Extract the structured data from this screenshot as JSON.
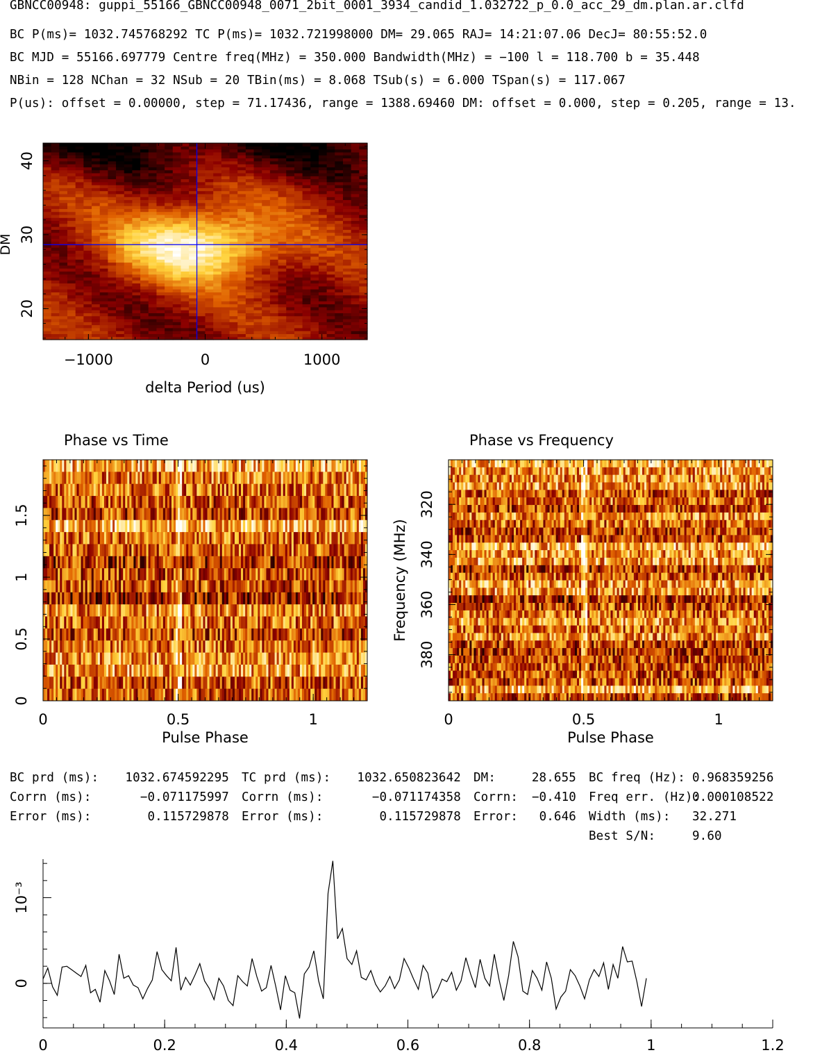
{
  "header": {
    "title": "GBNCC00948: guppi_55166_GBNCC00948_0071_2bit_0001_3934_candid_1.032722_p_0.0_acc_29_dm.plan.ar.clfd",
    "line1": "BC P(ms)= 1032.745768292 TC P(ms)= 1032.721998000 DM= 29.065 RAJ= 14:21:07.06 DecJ= 80:55:52.0",
    "line2": "BC MJD = 55166.697779 Centre freq(MHz) = 350.000 Bandwidth(MHz) = −100 l = 118.700 b = 35.448",
    "line3": "NBin = 128 NChan = 32 NSub = 20 TBin(ms) = 8.068 TSub(s) = 6.000 TSpan(s) = 117.067",
    "line4": "P(us): offset = 0.00000, step = 71.17436, range = 1388.69460 DM: offset = 0.000, step = 0.205, range = 13."
  },
  "stats": {
    "bc_prd_label": "BC prd (ms):",
    "bc_prd_value": "1032.674592295",
    "bc_corrn_label": "Corrn (ms):",
    "bc_corrn_value": "−0.071175997",
    "bc_error_label": "Error (ms):",
    "bc_error_value": "0.115729878",
    "tc_prd_label": "TC prd (ms):",
    "tc_prd_value": "1032.650823642",
    "tc_corrn_label": "Corrn (ms):",
    "tc_corrn_value": "−0.071174358",
    "tc_error_label": "Error (ms):",
    "tc_error_value": "0.115729878",
    "dm_label": "DM:",
    "dm_value": "28.655",
    "dm_corrn_label": "Corrn:",
    "dm_corrn_value": "−0.410",
    "dm_error_label": "Error:",
    "dm_error_value": "0.646",
    "bc_freq_label": "BC freq (Hz):",
    "bc_freq_value": "0.968359256",
    "freq_err_label": "Freq err. (Hz):",
    "freq_err_value": "0.000108522",
    "width_label": "Width (ms):",
    "width_value": "32.271",
    "snr_label": "Best S/N:",
    "snr_value": "9.60"
  },
  "colors": {
    "axis": "#000000",
    "crosshair": "#0000ff",
    "colormap": [
      "#000000",
      "#8b0000",
      "#e06000",
      "#ffd23c",
      "#ffffff"
    ]
  },
  "chart_data": [
    {
      "type": "heatmap",
      "name": "dm-period-search",
      "xlabel": "delta Period (us)",
      "ylabel": "DM",
      "xlim": [
        -1388.7,
        1388.7
      ],
      "ylim": [
        15.8,
        42.4
      ],
      "xticks": [
        -1000,
        0,
        1000
      ],
      "xtick_labels": [
        "−1000",
        "0",
        "1000"
      ],
      "yticks": [
        20,
        30,
        40
      ],
      "peak": {
        "x": -71,
        "y": 28.655
      },
      "crosshair": {
        "x": -71,
        "y": 28.655
      }
    },
    {
      "type": "heatmap",
      "name": "phase-vs-time",
      "title": "Phase vs Time",
      "xlabel": "Pulse Phase",
      "ylabel": "",
      "xlim": [
        0,
        1.2
      ],
      "ylim": [
        0,
        1.95
      ],
      "xticks": [
        0,
        0.5,
        1
      ],
      "yticks": [
        0,
        0.5,
        1,
        1.5
      ],
      "nsub": 20,
      "nbin": 128,
      "pulse_phase": 0.5
    },
    {
      "type": "heatmap",
      "name": "phase-vs-frequency",
      "title": "Phase vs Frequency",
      "xlabel": "Pulse Phase",
      "ylabel": "Frequency (MHz)",
      "xlim": [
        0,
        1.2
      ],
      "ylim": [
        398.4,
        302.2
      ],
      "xticks": [
        0,
        0.5,
        1
      ],
      "yticks": [
        320,
        340,
        360,
        380
      ],
      "nchan": 32,
      "nbin": 128,
      "pulse_phase": 0.5
    },
    {
      "type": "line",
      "name": "pulse-profile",
      "xlabel": "",
      "ylabel": "10⁻³",
      "xlim": [
        0,
        1.2
      ],
      "ylim": [
        -5.2,
        14.5
      ],
      "xticks": [
        0,
        0.2,
        0.4,
        0.6,
        0.8,
        1,
        1.2
      ],
      "yticks": [
        0,
        10
      ],
      "ytick_labels": [
        "0",
        "10⁻³"
      ],
      "x_step": 0.0078125,
      "values": [
        0.5,
        1.8,
        -0.4,
        -1.4,
        1.9,
        2.0,
        1.6,
        1.2,
        0.8,
        2.1,
        -1.1,
        -0.7,
        -2.2,
        1.5,
        0.3,
        -1.3,
        3.4,
        0.6,
        0.9,
        -0.2,
        -0.5,
        -1.8,
        -0.6,
        0.4,
        3.7,
        1.6,
        0.9,
        0.3,
        4.2,
        -0.8,
        0.7,
        -0.2,
        1.0,
        2.3,
        0.3,
        -0.6,
        -1.9,
        0.6,
        -0.3,
        -2.0,
        -2.6,
        0.9,
        0.2,
        -0.3,
        2.9,
        0.8,
        -0.9,
        -0.5,
        2.1,
        -0.4,
        -3.1,
        0.9,
        -0.8,
        -1.1,
        -4.1,
        1.1,
        1.9,
        3.8,
        0.3,
        -1.8,
        10.5,
        14.3,
        5.2,
        6.4,
        2.9,
        2.2,
        3.8,
        0.7,
        0.4,
        1.5,
        -0.1,
        -1.0,
        -0.3,
        0.8,
        -0.6,
        0.4,
        2.9,
        1.8,
        0.5,
        -0.7,
        2.1,
        1.2,
        -1.7,
        -0.9,
        0.5,
        0.2,
        1.3,
        -0.8,
        0.3,
        3.0,
        1.1,
        -0.5,
        2.8,
        0.6,
        -0.3,
        3.4,
        0.4,
        -2.0,
        0.9,
        4.9,
        3.1,
        -0.9,
        -1.3,
        1.5,
        0.6,
        -0.8,
        2.5,
        0.6,
        -3.0,
        -1.6,
        -0.9,
        1.6,
        0.9,
        -0.3,
        -1.8,
        0.4,
        1.6,
        0.8,
        2.4,
        -0.7,
        2.2,
        0.6,
        4.3,
        2.5,
        2.6,
        0.2,
        -2.7,
        0.6
      ]
    }
  ]
}
